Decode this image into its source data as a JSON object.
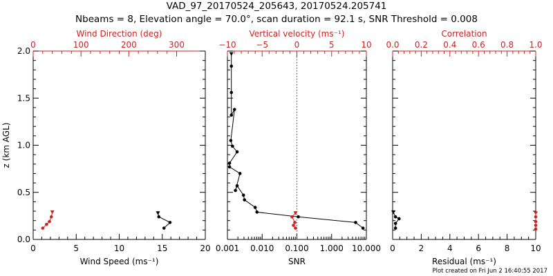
{
  "figure": {
    "title_line1": "VAD_97_20170524_205643, 20170524.205741",
    "title_line2": "Nbeams = 8, Elevation angle = 70.0°, scan duration = 92.1 s, SNR Threshold = 0.008",
    "footer": "Plot created on Fri Jun  2 16:40:55 2017",
    "colors": {
      "axis": "#000000",
      "top_axis": "#cc2222",
      "black_series": "#000000",
      "red_series": "#cc2222"
    }
  },
  "chart_data": [
    {
      "type": "line",
      "panel": "left",
      "ylabel": "z (km AGL)",
      "ylim": [
        0,
        2.0
      ],
      "yticks": [
        "0.0",
        "0.5",
        "1.0",
        "1.5",
        "2.0"
      ],
      "ytick_values": [
        0,
        0.5,
        1.0,
        1.5,
        2.0
      ],
      "xbottom": {
        "label": "Wind Speed (ms⁻¹)",
        "lim": [
          0,
          20
        ],
        "ticks": [
          "0",
          "5",
          "10",
          "15",
          "20"
        ],
        "tick_values": [
          0,
          5,
          10,
          15,
          20
        ]
      },
      "xtop": {
        "label": "Wind Direction (deg)",
        "lim": [
          0,
          360
        ],
        "ticks": [
          "0",
          "100",
          "200",
          "300"
        ],
        "tick_values": [
          0,
          100,
          200,
          300
        ]
      },
      "series": [
        {
          "axis": "bottom",
          "color": "black",
          "x": [
            14.5,
            14.6,
            15.9,
            15.2
          ],
          "y": [
            0.28,
            0.24,
            0.18,
            0.12
          ]
        },
        {
          "axis": "top",
          "color": "red",
          "x": [
            40,
            38,
            34,
            28,
            20
          ],
          "y": [
            0.29,
            0.24,
            0.19,
            0.16,
            0.12
          ]
        }
      ]
    },
    {
      "type": "line",
      "panel": "middle",
      "ylim": [
        0,
        2.0
      ],
      "xbottom": {
        "label": "SNR",
        "scale": "log",
        "lim": [
          0.001,
          10
        ],
        "ticks": [
          "0.001",
          "0.010",
          "0.100",
          "1.000",
          "10.000"
        ],
        "tick_values": [
          0.001,
          0.01,
          0.1,
          1,
          10
        ]
      },
      "xtop": {
        "label": "Vertical velocity (ms⁻¹)",
        "lim": [
          -10,
          10
        ],
        "ticks": [
          "−10",
          "−5",
          "0",
          "5",
          "10"
        ],
        "tick_values": [
          -10,
          -5,
          0,
          5,
          10
        ]
      },
      "reference_line": {
        "axis": "top",
        "x": 0,
        "style": "dotted",
        "color": "red"
      },
      "series": [
        {
          "axis": "bottom",
          "color": "black",
          "x": [
            0.0013,
            0.0013,
            0.0013,
            0.0013,
            0.0016,
            0.00125,
            0.0014,
            0.0019,
            0.00115,
            0.00115,
            0.0023,
            0.0017,
            0.0019,
            0.0029,
            0.0031,
            0.0063,
            0.0071,
            0.11,
            4.9,
            8.0
          ],
          "y": [
            1.97,
            1.84,
            1.56,
            1.32,
            1.38,
            1.05,
            0.99,
            0.93,
            0.81,
            0.77,
            0.7,
            0.52,
            0.57,
            0.47,
            0.42,
            0.34,
            0.29,
            0.24,
            0.18,
            0.12
          ]
        },
        {
          "axis": "top",
          "color": "red",
          "x": [
            -0.2,
            -0.7,
            -0.3,
            -0.5,
            -0.2
          ],
          "y": [
            0.28,
            0.24,
            0.18,
            0.15,
            0.12
          ]
        }
      ]
    },
    {
      "type": "line",
      "panel": "right",
      "ylim": [
        0,
        2.0
      ],
      "xbottom": {
        "label": "Residual (ms⁻¹)",
        "lim": [
          0,
          10
        ],
        "ticks": [
          "0",
          "2",
          "4",
          "6",
          "8",
          "10"
        ],
        "tick_values": [
          0,
          2,
          4,
          6,
          8,
          10
        ]
      },
      "xtop": {
        "label": "Correlation",
        "lim": [
          0,
          1
        ],
        "ticks": [
          "0.0",
          "0.2",
          "0.4",
          "0.6",
          "0.8",
          "1.0"
        ],
        "tick_values": [
          0,
          0.2,
          0.4,
          0.6,
          0.8,
          1.0
        ]
      },
      "series": [
        {
          "axis": "bottom",
          "color": "black",
          "x": [
            0.05,
            0.2,
            0.45,
            0.2,
            0.2
          ],
          "y": [
            0.29,
            0.24,
            0.22,
            0.17,
            0.12
          ]
        },
        {
          "axis": "top",
          "color": "red",
          "x": [
            1.0,
            1.0,
            1.0,
            1.0,
            1.0
          ],
          "y": [
            0.28,
            0.24,
            0.19,
            0.15,
            0.11
          ]
        }
      ]
    }
  ]
}
